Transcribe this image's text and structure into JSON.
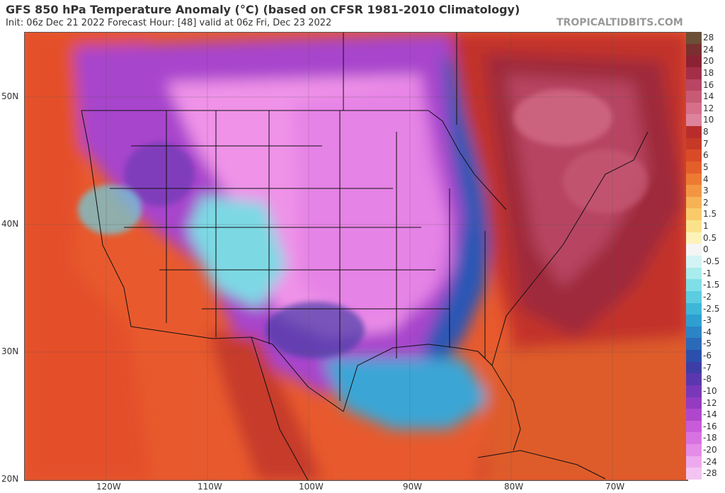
{
  "header": {
    "title": "GFS 850 hPa Temperature Anomaly (°C) (based on CFSR 1981-2010 Climatology)",
    "subtitle": "Init: 06z Dec 21 2022   Forecast Hour: [48]   valid at 06z Fri, Dec 23 2022",
    "credit": "TROPICALTIDBITS.COM"
  },
  "map": {
    "lat_labels": [
      "50N",
      "40N",
      "30N",
      "20N"
    ],
    "lon_labels": [
      "120W",
      "110W",
      "100W",
      "90W",
      "80W",
      "70W"
    ]
  },
  "colorbar": {
    "labels": [
      "28",
      "24",
      "20",
      "18",
      "16",
      "14",
      "12",
      "10",
      "8",
      "7",
      "6",
      "5",
      "4",
      "3",
      "2",
      "1.5",
      "1",
      "0.5",
      "0",
      "-0.5",
      "-1",
      "-1.5",
      "-2",
      "-2.5",
      "-3",
      "-4",
      "-5",
      "-6",
      "-7",
      "-8",
      "-10",
      "-12",
      "-14",
      "-16",
      "-18",
      "-20",
      "-24",
      "-28"
    ],
    "colors": [
      "#6b4f37",
      "#7a2f30",
      "#8b2233",
      "#a32e47",
      "#b84563",
      "#c75a75",
      "#d66f8a",
      "#de839c",
      "#b82d2b",
      "#c73927",
      "#d94b28",
      "#e35f2a",
      "#ed7a32",
      "#f29643",
      "#f6b255",
      "#f9ca6a",
      "#fbe28b",
      "#fdf3b8",
      "#f5f5f5",
      "#d2f4f5",
      "#a8ecee",
      "#7fdfe6",
      "#5ccde0",
      "#3db7d8",
      "#2e9fd0",
      "#2c84c5",
      "#2b69b9",
      "#2b50ac",
      "#3c3ea6",
      "#5a37ae",
      "#7838b7",
      "#943bc1",
      "#af47cc",
      "#c75bd8",
      "#d872e1",
      "#e48ce8",
      "#eda9ee",
      "#f3c4f2"
    ]
  }
}
